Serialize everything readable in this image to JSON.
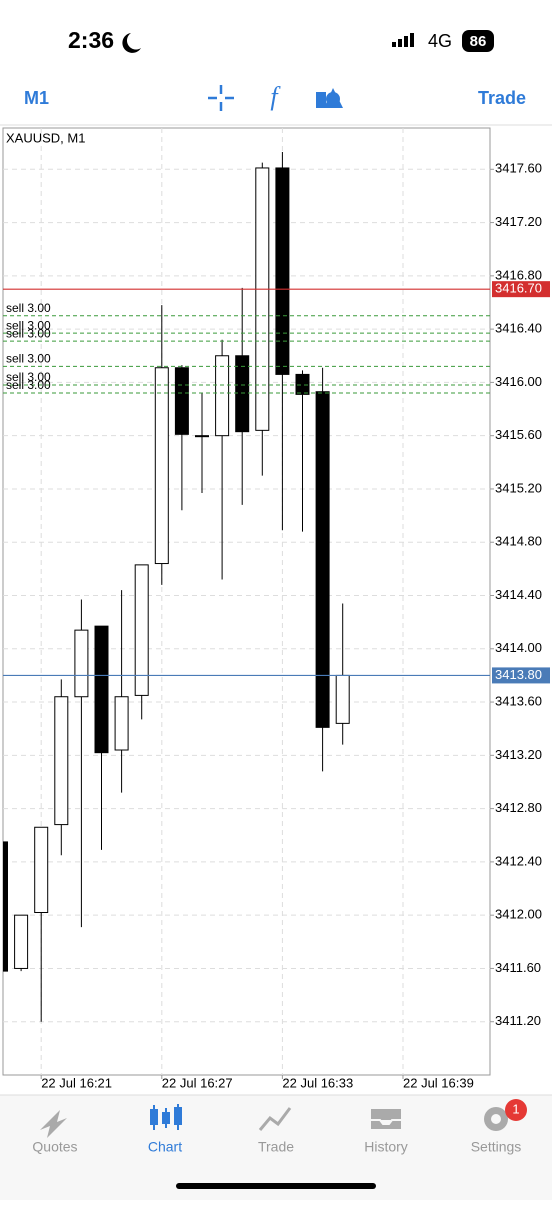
{
  "status_bar": {
    "time": "2:36",
    "network": "4G",
    "battery": "86"
  },
  "toolbar": {
    "timeframe": "M1",
    "trade": "Trade"
  },
  "chart_data": {
    "type": "candlestick",
    "title": "XAUUSD, M1",
    "categories": [
      null,
      null,
      "22 Jul 16:21",
      null,
      null,
      null,
      null,
      null,
      "22 Jul 16:27",
      null,
      null,
      null,
      null,
      null,
      "22 Jul 16:33",
      null,
      null,
      null,
      null,
      null,
      "22 Jul 16:39"
    ],
    "open": [
      3412.55,
      3411.6,
      3412.02,
      3412.68,
      3413.64,
      3414.17,
      3413.24,
      3413.65,
      3414.64,
      3416.11,
      3415.6,
      3415.6,
      3416.2,
      3415.64,
      3417.61,
      3416.06,
      3415.93,
      3413.44,
      null,
      null,
      null
    ],
    "high": [
      3412.55,
      3412.0,
      3412.66,
      3413.77,
      3414.37,
      3414.17,
      3414.44,
      3414.63,
      3416.58,
      3416.13,
      3415.92,
      3416.32,
      3416.71,
      3417.65,
      3417.73,
      3416.09,
      3416.11,
      3414.34,
      null,
      null,
      null
    ],
    "low": [
      3411.58,
      3411.58,
      3411.2,
      3412.45,
      3411.91,
      3412.49,
      3412.92,
      3413.47,
      3414.48,
      3415.04,
      3415.17,
      3414.52,
      3415.08,
      3415.3,
      3414.89,
      3414.88,
      3413.08,
      3413.28,
      null,
      null,
      null
    ],
    "close": [
      3411.58,
      3412.0,
      3412.66,
      3413.64,
      3414.14,
      3413.22,
      3413.64,
      3414.63,
      3416.11,
      3415.61,
      3415.6,
      3416.2,
      3415.63,
      3417.61,
      3416.06,
      3415.91,
      3413.41,
      3413.8,
      null,
      null,
      null
    ],
    "up_color": "#ffffff",
    "down_color": "#000000",
    "ylim": [
      3410.8,
      3417.91
    ],
    "yticks": [
      {
        "value": 3411.2,
        "label": "3411.20"
      },
      {
        "value": 3411.6,
        "label": "3411.60"
      },
      {
        "value": 3412,
        "label": "3412.00"
      },
      {
        "value": 3412.4,
        "label": "3412.40"
      },
      {
        "value": 3412.8,
        "label": "3412.80"
      },
      {
        "value": 3413.2,
        "label": "3413.20"
      },
      {
        "value": 3413.6,
        "label": "3413.60"
      },
      {
        "value": 3414,
        "label": "3414.00"
      },
      {
        "value": 3414.4,
        "label": "3414.40"
      },
      {
        "value": 3414.8,
        "label": "3414.80"
      },
      {
        "value": 3415.2,
        "label": "3415.20"
      },
      {
        "value": 3415.6,
        "label": "3415.60"
      },
      {
        "value": 3416,
        "label": "3416.00"
      },
      {
        "value": 3416.4,
        "label": "3416.40"
      },
      {
        "value": 3416.8,
        "label": "3416.80"
      },
      {
        "value": 3417.2,
        "label": "3417.20"
      },
      {
        "value": 3417.6,
        "label": "3417.60"
      }
    ],
    "grid": true,
    "lines": [
      {
        "value": 3416.7,
        "label": "3416.70",
        "color": "#d32f2f"
      },
      {
        "value": 3413.8,
        "label": "3413.80",
        "color": "#4a7bb7"
      }
    ],
    "orders": [
      {
        "label": "sell 3.00",
        "value": 3416.5
      },
      {
        "label": "sell 3.00",
        "value": 3416.37
      },
      {
        "label": "sell 3.00",
        "value": 3416.31
      },
      {
        "label": "sell 3.00",
        "value": 3416.12
      },
      {
        "label": "sell 3.00",
        "value": 3415.98
      },
      {
        "label": "sell 3.00",
        "value": 3415.92
      }
    ]
  },
  "tabs": [
    "Quotes",
    "Chart",
    "Trade",
    "History",
    "Settings"
  ],
  "settings_badge": "1"
}
